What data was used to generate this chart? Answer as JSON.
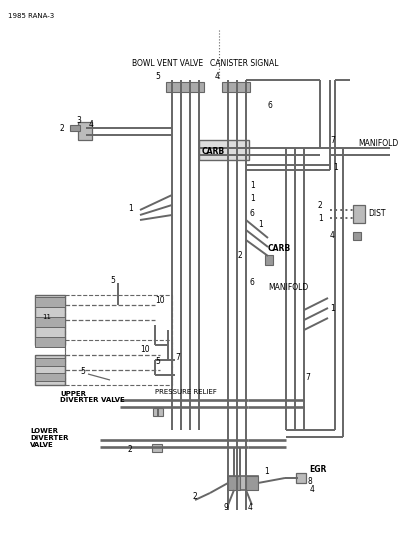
{
  "bg_color": "#ffffff",
  "line_color": "#666666",
  "text_color": "#000000",
  "page_label": "1985 RANA-3",
  "lw_main": 1.4,
  "lw_thin": 0.9,
  "labels": {
    "bowl_vent_valve": "BOWL VENT VALVE",
    "canister_signal": "CANISTER SIGNAL",
    "manifold_top": "MANIFOLD",
    "dist": "DIST",
    "carb_top": "CARB",
    "carb_mid": "CARB",
    "manifold_mid": "MANIFOLD",
    "egr": "EGR",
    "upper_diverter": "UPPER\nDIVERTER VALVE",
    "pressure_relief": "PRESSURE RELIEF",
    "lower_diverter": "LOWER\nDIVERTER\nVALVE"
  }
}
